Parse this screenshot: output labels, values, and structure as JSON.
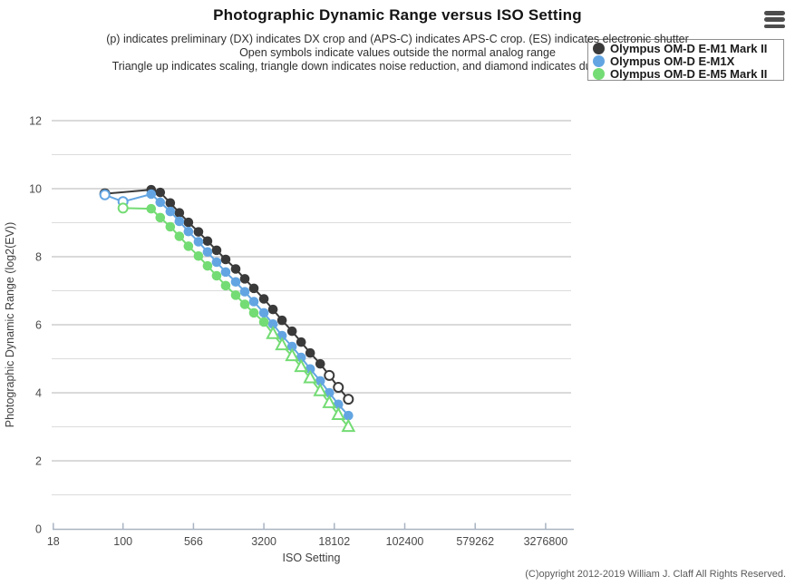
{
  "footer": {
    "copyright": "(C)opyright 2012-2019 William J. Claff All Rights Reserved."
  },
  "icons": {
    "menu": "hamburger-menu-icon"
  },
  "chart_data": {
    "type": "line",
    "title": "Photographic Dynamic Range versus ISO Setting",
    "subtitle_lines": [
      "(p) indicates preliminary (DX) indicates DX crop and (APS-C) indicates APS-C crop. (ES) indicates electronic shutter",
      "Open symbols indicate values outside the normal analog range",
      "Triangle up indicates scaling, triangle down indicates noise reduction, and diamond indicates dual conversion gain"
    ],
    "xlabel": "ISO Setting",
    "ylabel": "Photographic Dynamic Range (log2(EV))",
    "x_scale": "log",
    "x_tick_values": [
      18,
      100,
      566,
      3200,
      18102,
      102400,
      579262,
      3276800
    ],
    "x_tick_labels": [
      "18",
      "100",
      "566",
      "3200",
      "18102",
      "102400",
      "579262",
      "3276800"
    ],
    "y_ticks": [
      0,
      2,
      4,
      6,
      8,
      10,
      12
    ],
    "ylim": [
      0,
      12.5
    ],
    "grid": "horizontal-only",
    "legend_position": "top-right",
    "marker_semantics": {
      "open": "outside normal analog range",
      "triangle-up": "scaling"
    },
    "colors": {
      "axis": "#a9b4c2",
      "grid_major": "#b5b5b5",
      "grid_minor": "#dcdcdc",
      "tick_text": "#4a4a4a"
    },
    "series": [
      {
        "name": "Olympus OM-D E-M1 Mark II",
        "color": "#3a3a3a",
        "points": [
          {
            "iso": 64,
            "pdr": 9.85,
            "marker": "open-circle"
          },
          {
            "iso": 200,
            "pdr": 9.97,
            "marker": "circle"
          },
          {
            "iso": 250,
            "pdr": 9.89,
            "marker": "circle"
          },
          {
            "iso": 320,
            "pdr": 9.58,
            "marker": "circle"
          },
          {
            "iso": 400,
            "pdr": 9.29,
            "marker": "circle"
          },
          {
            "iso": 500,
            "pdr": 9.01,
            "marker": "circle"
          },
          {
            "iso": 640,
            "pdr": 8.73,
            "marker": "circle"
          },
          {
            "iso": 800,
            "pdr": 8.46,
            "marker": "circle"
          },
          {
            "iso": 1000,
            "pdr": 8.19,
            "marker": "circle"
          },
          {
            "iso": 1250,
            "pdr": 7.92,
            "marker": "circle"
          },
          {
            "iso": 1600,
            "pdr": 7.64,
            "marker": "circle"
          },
          {
            "iso": 2000,
            "pdr": 7.35,
            "marker": "circle"
          },
          {
            "iso": 2500,
            "pdr": 7.07,
            "marker": "circle"
          },
          {
            "iso": 3200,
            "pdr": 6.76,
            "marker": "circle"
          },
          {
            "iso": 4000,
            "pdr": 6.45,
            "marker": "circle"
          },
          {
            "iso": 5000,
            "pdr": 6.13,
            "marker": "circle"
          },
          {
            "iso": 6400,
            "pdr": 5.81,
            "marker": "circle"
          },
          {
            "iso": 8000,
            "pdr": 5.49,
            "marker": "circle"
          },
          {
            "iso": 10000,
            "pdr": 5.17,
            "marker": "circle"
          },
          {
            "iso": 12800,
            "pdr": 4.85,
            "marker": "circle"
          },
          {
            "iso": 16000,
            "pdr": 4.51,
            "marker": "open-circle"
          },
          {
            "iso": 20000,
            "pdr": 4.16,
            "marker": "open-circle"
          },
          {
            "iso": 25600,
            "pdr": 3.81,
            "marker": "open-circle"
          }
        ]
      },
      {
        "name": "Olympus OM-D E-M1X",
        "color": "#63a5e2",
        "points": [
          {
            "iso": 64,
            "pdr": 9.82,
            "marker": "open-circle"
          },
          {
            "iso": 100,
            "pdr": 9.62,
            "marker": "open-circle"
          },
          {
            "iso": 200,
            "pdr": 9.84,
            "marker": "circle"
          },
          {
            "iso": 250,
            "pdr": 9.6,
            "marker": "circle"
          },
          {
            "iso": 320,
            "pdr": 9.33,
            "marker": "circle"
          },
          {
            "iso": 400,
            "pdr": 9.04,
            "marker": "circle"
          },
          {
            "iso": 500,
            "pdr": 8.74,
            "marker": "circle"
          },
          {
            "iso": 640,
            "pdr": 8.44,
            "marker": "circle"
          },
          {
            "iso": 800,
            "pdr": 8.14,
            "marker": "circle"
          },
          {
            "iso": 1000,
            "pdr": 7.84,
            "marker": "circle"
          },
          {
            "iso": 1250,
            "pdr": 7.55,
            "marker": "circle"
          },
          {
            "iso": 1600,
            "pdr": 7.26,
            "marker": "circle"
          },
          {
            "iso": 2000,
            "pdr": 6.97,
            "marker": "circle"
          },
          {
            "iso": 2500,
            "pdr": 6.68,
            "marker": "circle"
          },
          {
            "iso": 3200,
            "pdr": 6.35,
            "marker": "circle"
          },
          {
            "iso": 4000,
            "pdr": 6.02,
            "marker": "circle"
          },
          {
            "iso": 5000,
            "pdr": 5.68,
            "marker": "circle"
          },
          {
            "iso": 6400,
            "pdr": 5.36,
            "marker": "circle"
          },
          {
            "iso": 8000,
            "pdr": 5.04,
            "marker": "circle"
          },
          {
            "iso": 10000,
            "pdr": 4.7,
            "marker": "circle"
          },
          {
            "iso": 12800,
            "pdr": 4.35,
            "marker": "circle"
          },
          {
            "iso": 16000,
            "pdr": 4.0,
            "marker": "circle"
          },
          {
            "iso": 20000,
            "pdr": 3.66,
            "marker": "circle"
          },
          {
            "iso": 25600,
            "pdr": 3.33,
            "marker": "circle"
          }
        ]
      },
      {
        "name": "Olympus OM-D E-M5 Mark II",
        "color": "#74dc74",
        "points": [
          {
            "iso": 100,
            "pdr": 9.43,
            "marker": "open-circle"
          },
          {
            "iso": 200,
            "pdr": 9.41,
            "marker": "circle"
          },
          {
            "iso": 250,
            "pdr": 9.15,
            "marker": "circle"
          },
          {
            "iso": 320,
            "pdr": 8.88,
            "marker": "circle"
          },
          {
            "iso": 400,
            "pdr": 8.6,
            "marker": "circle"
          },
          {
            "iso": 500,
            "pdr": 8.31,
            "marker": "circle"
          },
          {
            "iso": 640,
            "pdr": 8.02,
            "marker": "circle"
          },
          {
            "iso": 800,
            "pdr": 7.73,
            "marker": "circle"
          },
          {
            "iso": 1000,
            "pdr": 7.44,
            "marker": "circle"
          },
          {
            "iso": 1250,
            "pdr": 7.15,
            "marker": "circle"
          },
          {
            "iso": 1600,
            "pdr": 6.87,
            "marker": "circle"
          },
          {
            "iso": 2000,
            "pdr": 6.6,
            "marker": "circle"
          },
          {
            "iso": 2500,
            "pdr": 6.35,
            "marker": "circle"
          },
          {
            "iso": 3200,
            "pdr": 6.08,
            "marker": "circle"
          },
          {
            "iso": 4000,
            "pdr": 5.73,
            "marker": "open-triangle-up"
          },
          {
            "iso": 5000,
            "pdr": 5.4,
            "marker": "open-triangle-up"
          },
          {
            "iso": 6400,
            "pdr": 5.08,
            "marker": "open-triangle-up"
          },
          {
            "iso": 8000,
            "pdr": 4.76,
            "marker": "open-triangle-up"
          },
          {
            "iso": 10000,
            "pdr": 4.43,
            "marker": "open-triangle-up"
          },
          {
            "iso": 12800,
            "pdr": 4.05,
            "marker": "open-triangle-up"
          },
          {
            "iso": 16000,
            "pdr": 3.7,
            "marker": "open-triangle-up"
          },
          {
            "iso": 20000,
            "pdr": 3.35,
            "marker": "open-triangle-up"
          },
          {
            "iso": 25600,
            "pdr": 3.0,
            "marker": "open-triangle-up"
          }
        ]
      }
    ]
  }
}
